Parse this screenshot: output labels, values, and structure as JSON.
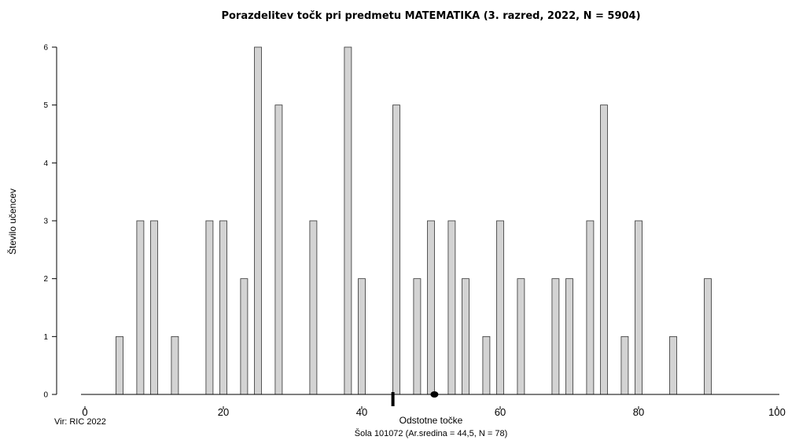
{
  "chart_data": {
    "type": "bar",
    "title": "Porazdelitev točk pri predmetu MATEMATIKA (3. razred, 2022, N = 5904)",
    "xlabel": "Odstotne točke",
    "ylabel": "Število učencev",
    "xlim": [
      0,
      100
    ],
    "ylim": [
      0,
      6
    ],
    "xticks": [
      "0",
      "20",
      "40",
      "60",
      "80",
      "100"
    ],
    "yticks": [
      "0",
      "1",
      "2",
      "3",
      "4",
      "5",
      "6"
    ],
    "bar_color": "#d3d3d3",
    "x": [
      5,
      8,
      10,
      13,
      18,
      20,
      23,
      25,
      28,
      33,
      38,
      40,
      45,
      48,
      50,
      53,
      55,
      58,
      60,
      63,
      68,
      70,
      73,
      75,
      78,
      80,
      85,
      90
    ],
    "values": [
      1,
      3,
      3,
      1,
      3,
      3,
      2,
      6,
      5,
      3,
      6,
      2,
      5,
      2,
      3,
      3,
      2,
      1,
      3,
      2,
      2,
      2,
      3,
      5,
      1,
      3,
      1,
      2
    ],
    "markers": {
      "school_mean_x": 44.5,
      "overall_mean_x": 50.5
    },
    "source_label": "Vir: RIC 2022",
    "school_label": "Šola 101072 (Ar.sredina = 44,5, N = 78)"
  }
}
